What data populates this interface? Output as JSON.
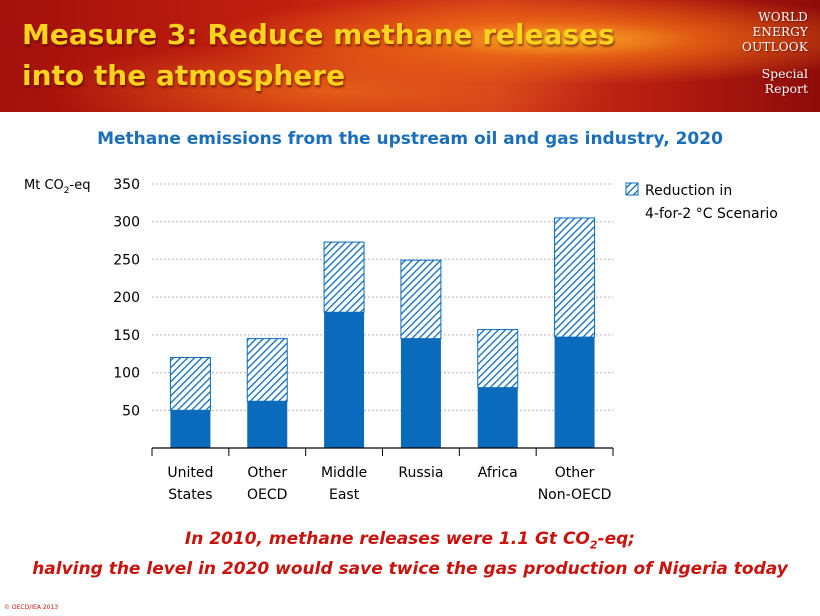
{
  "header": {
    "title_line1": "Measure 3: Reduce methane releases",
    "title_line2": "into the atmosphere",
    "brand_line1": "WORLD",
    "brand_line2": "ENERGY",
    "brand_line3": "OUTLOOK",
    "brand_line4": "Special",
    "brand_line5": "Report"
  },
  "footer": {
    "caption_line1_pre": "In 2010, methane releases were 1.1 Gt CO",
    "caption_line1_sub": "2",
    "caption_line1_post": "-eq;",
    "caption_line2": "halving the level in 2020 would save twice the gas production of Nigeria today",
    "copyright": "© OECD/IEA 2013"
  },
  "colors": {
    "base_series": "#0a6bbd",
    "hatch_series": "#0a6bbd",
    "title": "#1a6fb8",
    "caption": "#c8140f",
    "banner_text": "#ffd21e"
  },
  "chart_data": {
    "type": "bar",
    "stacked": true,
    "title": "Methane emissions from the upstream oil and gas industry, 2020",
    "ylabel_pre": "Mt CO",
    "ylabel_sub": "2",
    "ylabel_post": "-eq",
    "ylim": [
      0,
      350
    ],
    "yticks": [
      50,
      100,
      150,
      200,
      250,
      300,
      350
    ],
    "grid": true,
    "categories": [
      [
        "United",
        "States"
      ],
      [
        "Other",
        "OECD"
      ],
      [
        "Middle",
        "East"
      ],
      [
        "Russia"
      ],
      [
        "Africa"
      ],
      [
        "Other",
        "Non-OECD"
      ]
    ],
    "series": [
      {
        "values": [
          50,
          62,
          180,
          145,
          80,
          147
        ]
      },
      {
        "name": "Reduction in 4-for-2 °C Scenario",
        "values": [
          70,
          83,
          93,
          104,
          77,
          158
        ]
      }
    ],
    "legend": {
      "position": "top-right",
      "line1": "Reduction in",
      "line2": "4-for-2 °C Scenario"
    }
  }
}
